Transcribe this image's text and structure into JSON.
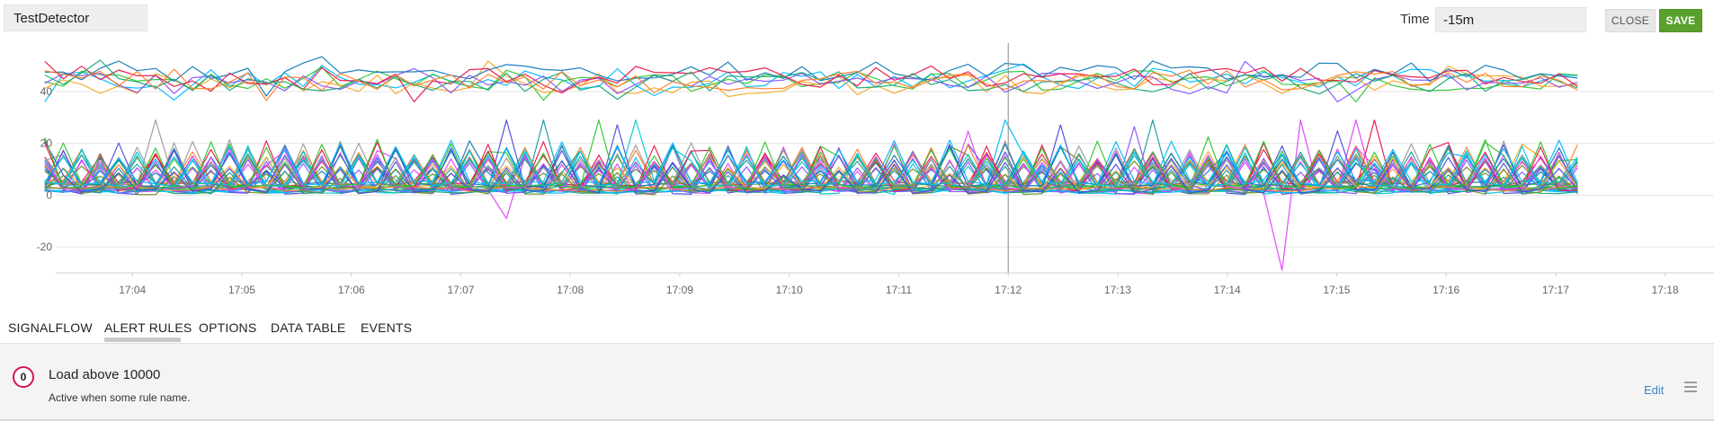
{
  "header": {
    "detector_name": "TestDetector",
    "time_label": "Time",
    "time_value": "-15m",
    "close_label": "CLOSE",
    "save_label": "SAVE"
  },
  "tabs": [
    {
      "label": "SIGNALFLOW",
      "active": false
    },
    {
      "label": "ALERT RULES",
      "active": true
    },
    {
      "label": "OPTIONS",
      "active": false
    },
    {
      "label": "DATA TABLE",
      "active": false
    },
    {
      "label": "EVENTS",
      "active": false
    }
  ],
  "alert_rule": {
    "severity_badge": "0",
    "severity_color": "#d4154b",
    "title": "Load above 10000",
    "description": "Active when some rule name.",
    "edit_label": "Edit",
    "menu_icon": "hamburger-menu-icon"
  },
  "colors": {
    "save_button": "#5aa02c",
    "link": "#3a84c9",
    "palette": [
      "#00b9ff",
      "#2fc432",
      "#f5a623",
      "#8c52ff",
      "#127ab8",
      "#ea1849",
      "#19a974",
      "#ff7f2a",
      "#9b9b9b",
      "#6b8e23",
      "#1a9c9c",
      "#e040fb",
      "#4b4bdc",
      "#00c8d7"
    ]
  },
  "chart_data": {
    "type": "line",
    "ylim": [
      -30,
      58
    ],
    "yticks": [
      40,
      20,
      0,
      -20
    ],
    "xticks": [
      "17:04",
      "17:05",
      "17:06",
      "17:07",
      "17:08",
      "17:09",
      "17:10",
      "17:11",
      "17:12",
      "17:13",
      "17:14",
      "17:15",
      "17:16",
      "17:17",
      "17:18"
    ],
    "x_range_minutes": [
      3.3,
      18.2
    ],
    "data_x_range_minutes": [
      3.2,
      17.2
    ],
    "cursor_at_minutes": 12,
    "grid": true,
    "legend": "none",
    "series_groups": [
      {
        "band": "high",
        "approx_range": [
          36,
          56
        ],
        "count": 8
      },
      {
        "band": "low",
        "approx_range": [
          0,
          29
        ],
        "count": 36
      }
    ],
    "notable_points": [
      {
        "x_minutes": 7.35,
        "y": -9
      },
      {
        "x_minutes": 14.5,
        "y": -29
      },
      {
        "x_minutes": 14.7,
        "y": 29
      }
    ]
  }
}
